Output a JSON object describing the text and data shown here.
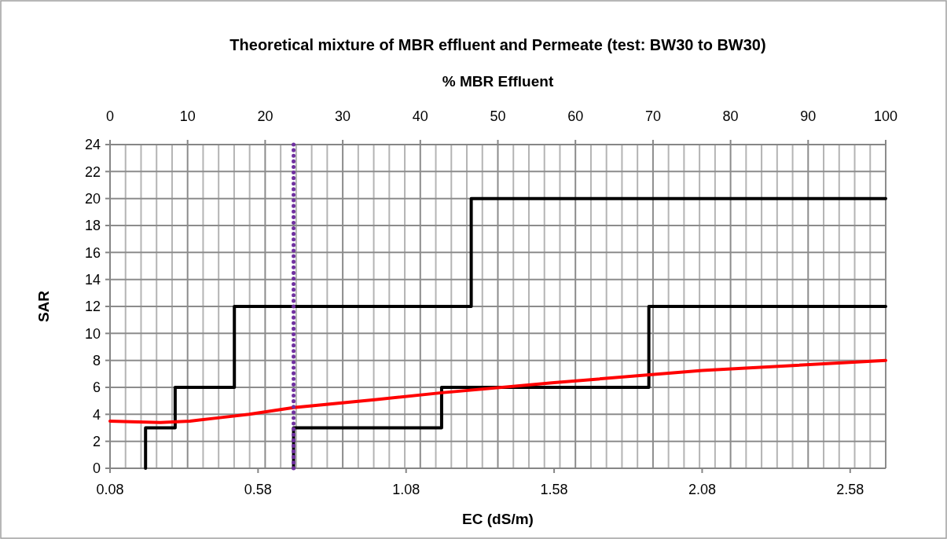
{
  "chart_data": {
    "type": "line",
    "title": "Theoretical mixture of MBR effluent and Permeate (test: BW30 to BW30)",
    "xlabel": "EC (dS/m)",
    "ylabel": "SAR",
    "x2label": "% MBR Effluent",
    "xlim": [
      0.08,
      2.7
    ],
    "xticks": [
      0.08,
      0.58,
      1.08,
      1.58,
      2.08,
      2.58
    ],
    "x2lim": [
      0,
      100
    ],
    "x2ticks": [
      0,
      {
        "value": 2,
        "label": null
      },
      {
        "value": 4,
        "label": null
      },
      {
        "value": 6,
        "label": null
      },
      {
        "value": 8,
        "label": null
      },
      10,
      {
        "value": 12,
        "label": null
      },
      {
        "value": 14,
        "label": null
      },
      {
        "value": 16,
        "label": null
      },
      {
        "value": 18,
        "label": null
      },
      20,
      {
        "value": 22,
        "label": null
      },
      {
        "value": 24,
        "label": null
      },
      {
        "value": 26,
        "label": null
      },
      {
        "value": 28,
        "label": null
      },
      30,
      {
        "value": 32,
        "label": null
      },
      {
        "value": 34,
        "label": null
      },
      {
        "value": 36,
        "label": null
      },
      {
        "value": 38,
        "label": null
      },
      40,
      {
        "value": 42,
        "label": null
      },
      {
        "value": 44,
        "label": null
      },
      {
        "value": 46,
        "label": null
      },
      {
        "value": 48,
        "label": null
      },
      50,
      {
        "value": 52,
        "label": null
      },
      {
        "value": 54,
        "label": null
      },
      {
        "value": 56,
        "label": null
      },
      {
        "value": 58,
        "label": null
      },
      60,
      {
        "value": 62,
        "label": null
      },
      {
        "value": 64,
        "label": null
      },
      {
        "value": 66,
        "label": null
      },
      {
        "value": 68,
        "label": null
      },
      70,
      {
        "value": 72,
        "label": null
      },
      {
        "value": 74,
        "label": null
      },
      {
        "value": 76,
        "label": null
      },
      {
        "value": 78,
        "label": null
      },
      80,
      {
        "value": 82,
        "label": null
      },
      {
        "value": 84,
        "label": null
      },
      {
        "value": 86,
        "label": null
      },
      {
        "value": 88,
        "label": null
      },
      90,
      {
        "value": 92,
        "label": null
      },
      {
        "value": 94,
        "label": null
      },
      {
        "value": 96,
        "label": null
      },
      {
        "value": 98,
        "label": null
      },
      100
    ],
    "ylim": [
      0,
      24
    ],
    "yticks": [
      0,
      2,
      4,
      6,
      8,
      10,
      12,
      14,
      16,
      18,
      20,
      22,
      24
    ],
    "grid": true,
    "marker": "none",
    "series": [
      {
        "color": "#000000",
        "x": [
          0.2,
          0.2,
          0.3,
          0.3,
          0.5,
          0.5,
          1.3,
          1.3,
          2.7
        ],
        "values": [
          0,
          3,
          3,
          6,
          6,
          12,
          12,
          20,
          20
        ]
      },
      {
        "color": "#000000",
        "x": [
          0.7,
          0.7,
          1.2,
          1.2,
          1.9,
          1.9,
          2.7
        ],
        "values": [
          0,
          3,
          3,
          6,
          6,
          12,
          12
        ]
      },
      {
        "color": "#ff0000",
        "x": [
          0.08,
          0.15,
          0.25,
          0.35,
          0.45,
          0.55,
          0.7,
          0.98,
          1.2,
          1.58,
          2.08,
          2.7
        ],
        "values": [
          3.5,
          3.45,
          3.4,
          3.5,
          3.75,
          4.0,
          4.5,
          5.1,
          5.6,
          6.35,
          7.25,
          8.0
        ]
      }
    ],
    "ref_lines": [
      {
        "axis": "x",
        "value": 0.7,
        "color": "#7030a0",
        "line_style": "dotted"
      }
    ]
  }
}
